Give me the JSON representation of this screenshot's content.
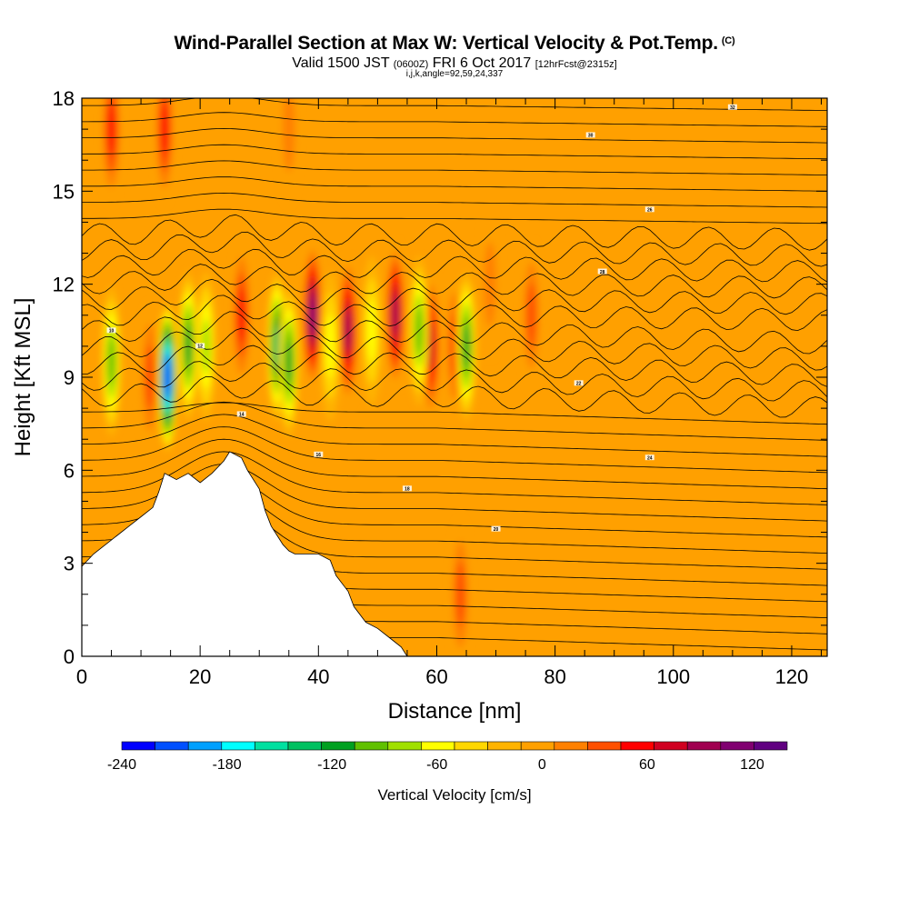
{
  "chart_data": {
    "type": "heatmap",
    "title": "Wind-Parallel Section at Max W: Vertical Velocity & Pot.Temp.",
    "title_mark": "(C)",
    "subtitle_main": "Valid 1500 JST",
    "subtitle_utc": "(0600Z)",
    "subtitle_date": "FRI 6 Oct 2017",
    "subtitle_fcst": "[12hrFcst@2315z]",
    "subtitle2": "i,j,k,angle=92,59,24,337",
    "xlabel": "Distance [nm]",
    "ylabel": "Height [Kft MSL]",
    "xlim": [
      0,
      126
    ],
    "ylim": [
      0,
      18
    ],
    "x_ticks": [
      "0",
      "20",
      "40",
      "60",
      "80",
      "100",
      "120"
    ],
    "y_ticks": [
      "0",
      "3",
      "6",
      "9",
      "12",
      "15",
      "18"
    ],
    "colorbar": {
      "label": "Vertical Velocity [cm/s]",
      "range": [
        -240,
        140
      ],
      "step": 20,
      "tick_labels": [
        "-240",
        "-180",
        "-120",
        "-60",
        "0",
        "60",
        "120"
      ],
      "colors": [
        "#0000ff",
        "#0050ff",
        "#00a0ff",
        "#00ffff",
        "#00e0a0",
        "#00c060",
        "#00a020",
        "#60c000",
        "#a0e000",
        "#ffff00",
        "#ffd700",
        "#ffb300",
        "#ffa000",
        "#ff8000",
        "#ff5000",
        "#ff0000",
        "#d00020",
        "#a00050",
        "#800070",
        "#600080"
      ]
    },
    "terrain_kft": [
      [
        0,
        2.9
      ],
      [
        2,
        3.3
      ],
      [
        4,
        3.6
      ],
      [
        6,
        3.9
      ],
      [
        8,
        4.2
      ],
      [
        10,
        4.5
      ],
      [
        12,
        4.8
      ],
      [
        13,
        5.3
      ],
      [
        14,
        5.9
      ],
      [
        16,
        5.7
      ],
      [
        18,
        5.9
      ],
      [
        20,
        5.6
      ],
      [
        22,
        5.9
      ],
      [
        24,
        6.3
      ],
      [
        25,
        6.6
      ],
      [
        27,
        6.4
      ],
      [
        28,
        6.0
      ],
      [
        30,
        5.4
      ],
      [
        31,
        4.7
      ],
      [
        32,
        4.2
      ],
      [
        33,
        3.9
      ],
      [
        34,
        3.6
      ],
      [
        35,
        3.4
      ],
      [
        36,
        3.3
      ],
      [
        40,
        3.3
      ],
      [
        42,
        3.1
      ],
      [
        43,
        2.6
      ],
      [
        45,
        2.1
      ],
      [
        46,
        1.6
      ],
      [
        48,
        1.1
      ],
      [
        50,
        0.9
      ],
      [
        52,
        0.6
      ],
      [
        54,
        0.3
      ],
      [
        55,
        0.0
      ]
    ],
    "updraft_cores": [
      {
        "x": 5,
        "z": 17,
        "w": 70
      },
      {
        "x": 14,
        "z": 17,
        "w": 70
      },
      {
        "x": 35,
        "z": 17,
        "w": 40
      },
      {
        "x": 4.5,
        "z": 10,
        "w": 30
      },
      {
        "x": 11.5,
        "z": 9,
        "w": 60
      },
      {
        "x": 27,
        "z": 11,
        "w": 80
      },
      {
        "x": 39,
        "z": 11,
        "w": 140
      },
      {
        "x": 45,
        "z": 10.5,
        "w": 110
      },
      {
        "x": 53,
        "z": 11,
        "w": 120
      },
      {
        "x": 59,
        "z": 10,
        "w": 90
      },
      {
        "x": 63,
        "z": 10,
        "w": 60
      },
      {
        "x": 76,
        "z": 11,
        "w": 60
      },
      {
        "x": 69,
        "z": 12,
        "w": 40
      },
      {
        "x": 64,
        "z": 2,
        "w": 50
      }
    ],
    "downdraft_cores": [
      {
        "x": 5,
        "z": 9.5,
        "w": -90
      },
      {
        "x": 14.5,
        "z": 9,
        "w": -240
      },
      {
        "x": 18,
        "z": 10,
        "w": -110
      },
      {
        "x": 21,
        "z": 10,
        "w": -70
      },
      {
        "x": 33,
        "z": 10,
        "w": -130
      },
      {
        "x": 35,
        "z": 9.5,
        "w": -110
      },
      {
        "x": 42,
        "z": 10,
        "w": -60
      },
      {
        "x": 49,
        "z": 10.5,
        "w": -60
      },
      {
        "x": 57,
        "z": 10.5,
        "w": -90
      },
      {
        "x": 65,
        "z": 10,
        "w": -110
      }
    ],
    "theta_contours_K": [
      "10",
      "12",
      "14",
      "16",
      "18",
      "20",
      "22",
      "24",
      "26",
      "28",
      "30",
      "32",
      "34",
      "36",
      "38",
      "40",
      "42",
      "44",
      "46",
      "48"
    ]
  }
}
